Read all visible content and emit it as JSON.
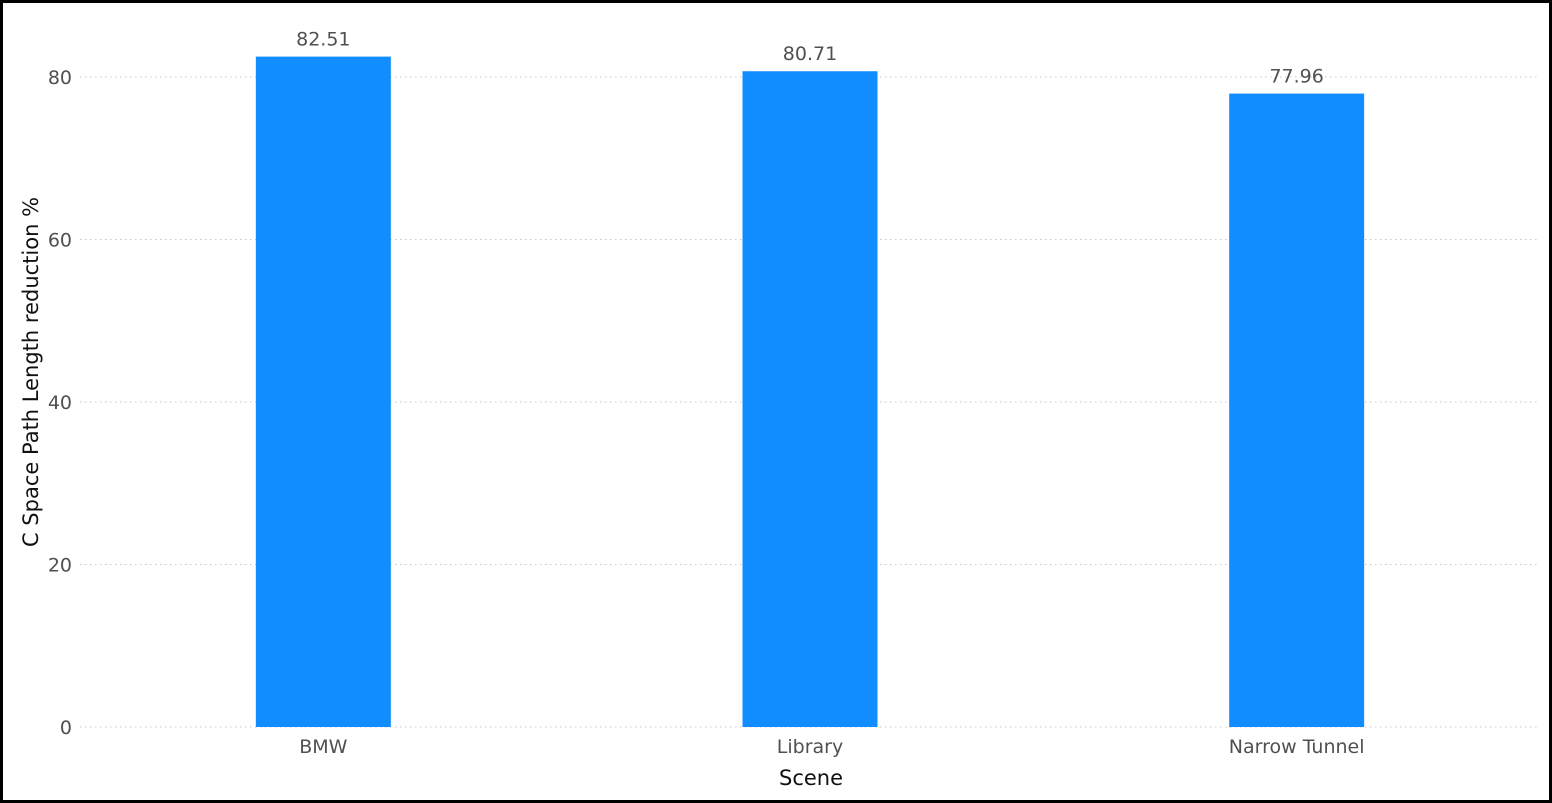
{
  "chart_data": {
    "type": "bar",
    "title": "",
    "xlabel": "Scene",
    "ylabel": "C Space Path Length reduction %",
    "categories": [
      "BMW",
      "Library",
      "Narrow Tunnel"
    ],
    "values": [
      82.51,
      80.71,
      77.96
    ],
    "value_labels": [
      "82.51",
      "80.71",
      "77.96"
    ],
    "yticks": [
      0,
      20,
      40,
      60,
      80
    ],
    "ylim": [
      0,
      85
    ],
    "grid": true,
    "bar_color": "#118DFF",
    "legend": "none"
  }
}
